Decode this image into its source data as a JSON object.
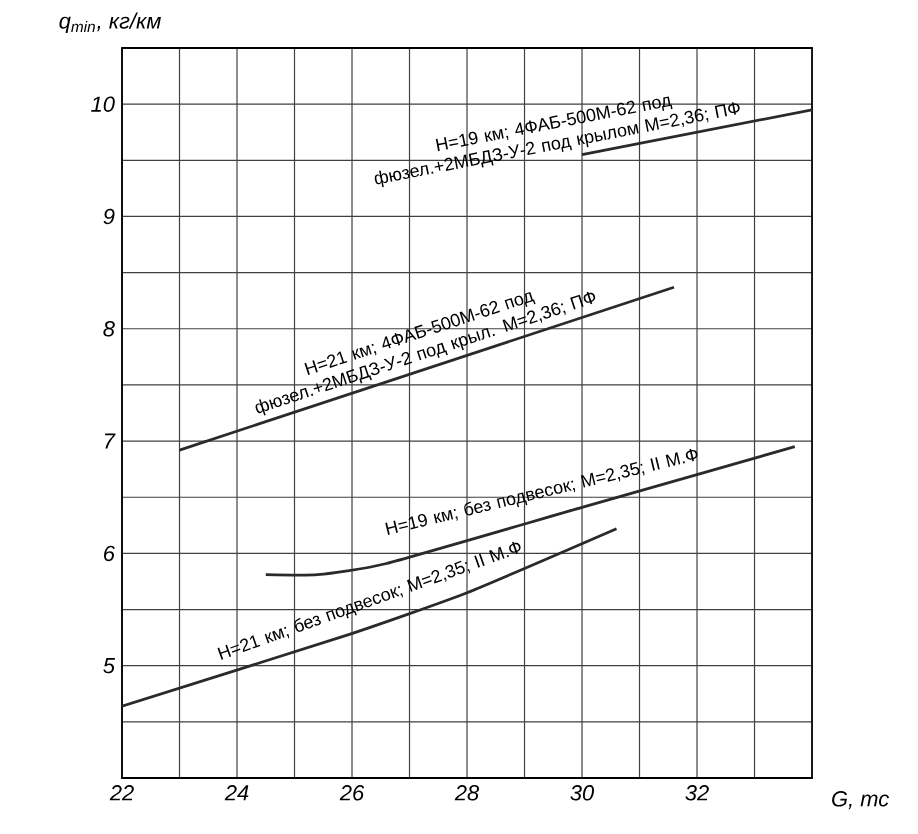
{
  "chart_data": {
    "type": "line",
    "xlabel": "G, тс",
    "ylabel": "q$_{min}$, кг/км",
    "xlim": [
      22,
      34
    ],
    "ylim": [
      4,
      10.5
    ],
    "xticks": [
      22,
      {
        "value": 23,
        "label": null
      },
      24,
      {
        "value": 25,
        "label": null
      },
      26,
      {
        "value": 27,
        "label": null
      },
      28,
      {
        "value": 29,
        "label": null
      },
      30,
      {
        "value": 31,
        "label": null
      },
      32,
      {
        "value": 33,
        "label": null
      }
    ],
    "yticks": [
      {
        "value": 4.5,
        "label": null
      },
      5,
      {
        "value": 5.5,
        "label": null
      },
      6,
      {
        "value": 6.5,
        "label": null
      },
      7,
      {
        "value": 7.5,
        "label": null
      },
      8,
      {
        "value": 8.5,
        "label": null
      },
      9,
      {
        "value": 9.5,
        "label": null
      },
      10
    ],
    "grid": true,
    "marker": "none",
    "line_style": "solid",
    "series": [
      {
        "name": "Н=19 км; 4ФАБ-500М-62 под фюзел.+2МБДЗ-У-2 под крылом М=2,36; ПФ",
        "color": "#2a2a2a",
        "x": [
          30.0,
          34.0
        ],
        "values": [
          9.55,
          9.95
        ]
      },
      {
        "name": "Н=21 км; 4ФАБ-500М-62 под фюзел.+2МБДЗ-У-2 под крыл. М=2,36; ПФ",
        "color": "#2a2a2a",
        "x": [
          23.0,
          31.6
        ],
        "values": [
          6.92,
          8.37
        ]
      },
      {
        "name": "Н=19 км; без подвесок; М=2,35; II М.Ф",
        "color": "#2a2a2a",
        "x": [
          24.5,
          25.4,
          26.6,
          30.0,
          33.7
        ],
        "values": [
          5.81,
          5.81,
          5.91,
          6.41,
          6.95
        ]
      },
      {
        "name": "Н=21 км; без подвесок; М=2,35; II М.Ф",
        "color": "#2a2a2a",
        "x": [
          22.0,
          25.9,
          28.0,
          30.6
        ],
        "values": [
          4.64,
          5.27,
          5.65,
          6.22
        ]
      }
    ]
  }
}
